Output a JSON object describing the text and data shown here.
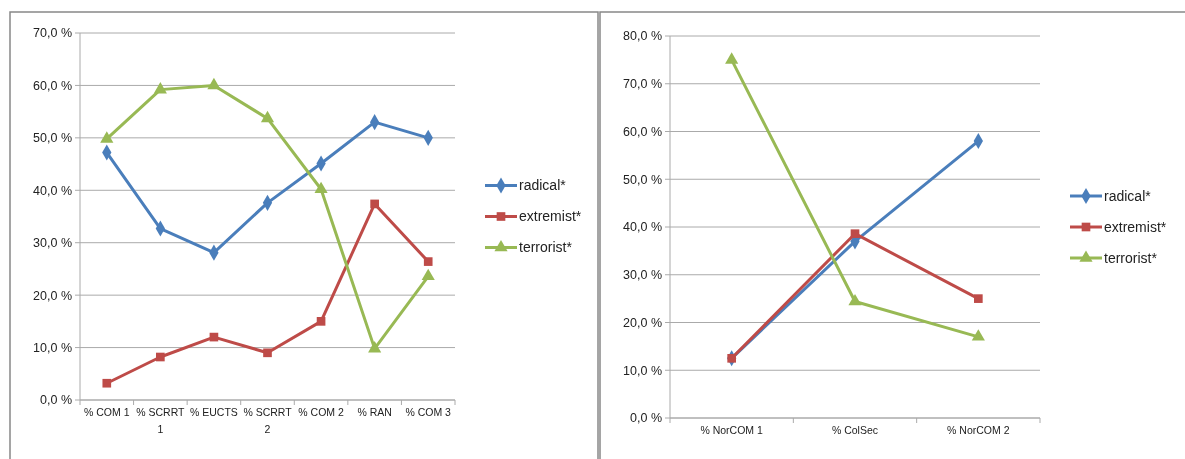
{
  "chart_data": [
    {
      "type": "line",
      "categories": [
        "% COM 1",
        "% SCRRT 1",
        "% EUCTS",
        "% SCRRT 2",
        "% COM 2",
        "% RAN",
        "% COM 3"
      ],
      "series": [
        {
          "name": "radical*",
          "color": "#4a7ebb",
          "marker": "diamond",
          "values": [
            47.2,
            32.7,
            28.1,
            37.6,
            45.1,
            53.0,
            50.0
          ]
        },
        {
          "name": "extremist*",
          "color": "#be4b48",
          "marker": "square",
          "values": [
            3.2,
            8.2,
            12.0,
            9.0,
            15.0,
            37.4,
            26.4
          ]
        },
        {
          "name": "terrorist*",
          "color": "#98b954",
          "marker": "triangle",
          "values": [
            49.8,
            59.2,
            60.0,
            53.7,
            40.2,
            9.8,
            23.6
          ]
        }
      ],
      "ylim": [
        0,
        70
      ],
      "yticks": [
        {
          "value": 0,
          "label": "0,0 %"
        },
        {
          "value": 10,
          "label": "10,0 %"
        },
        {
          "value": 20,
          "label": "20,0 %"
        },
        {
          "value": 30,
          "label": "30,0 %"
        },
        {
          "value": 40,
          "label": "40,0 %"
        },
        {
          "value": 50,
          "label": "50,0 %"
        },
        {
          "value": 60,
          "label": "60,0 %"
        },
        {
          "value": 70,
          "label": "70,0 %"
        }
      ],
      "grid": "y",
      "legend": "right",
      "line_style": "solid"
    },
    {
      "type": "line",
      "categories": [
        "% NorCOM 1",
        "% ColSec",
        "% NorCOM 2"
      ],
      "series": [
        {
          "name": "radical*",
          "color": "#4a7ebb",
          "marker": "diamond",
          "values": [
            12.5,
            37.0,
            58.0
          ]
        },
        {
          "name": "extremist*",
          "color": "#be4b48",
          "marker": "square",
          "values": [
            12.5,
            38.6,
            25.0
          ]
        },
        {
          "name": "terrorist*",
          "color": "#98b954",
          "marker": "triangle",
          "values": [
            75.0,
            24.4,
            17.0
          ]
        }
      ],
      "ylim": [
        0,
        80
      ],
      "yticks": [
        {
          "value": 0,
          "label": "0,0 %"
        },
        {
          "value": 10,
          "label": "10,0 %"
        },
        {
          "value": 20,
          "label": "20,0 %"
        },
        {
          "value": 30,
          "label": "30,0 %"
        },
        {
          "value": 40,
          "label": "40,0 %"
        },
        {
          "value": 50,
          "label": "50,0 %"
        },
        {
          "value": 60,
          "label": "60,0 %"
        },
        {
          "value": 70,
          "label": "70,0 %"
        },
        {
          "value": 80,
          "label": "80,0 %"
        }
      ],
      "grid": "y",
      "legend": "right",
      "line_style": "solid"
    }
  ]
}
